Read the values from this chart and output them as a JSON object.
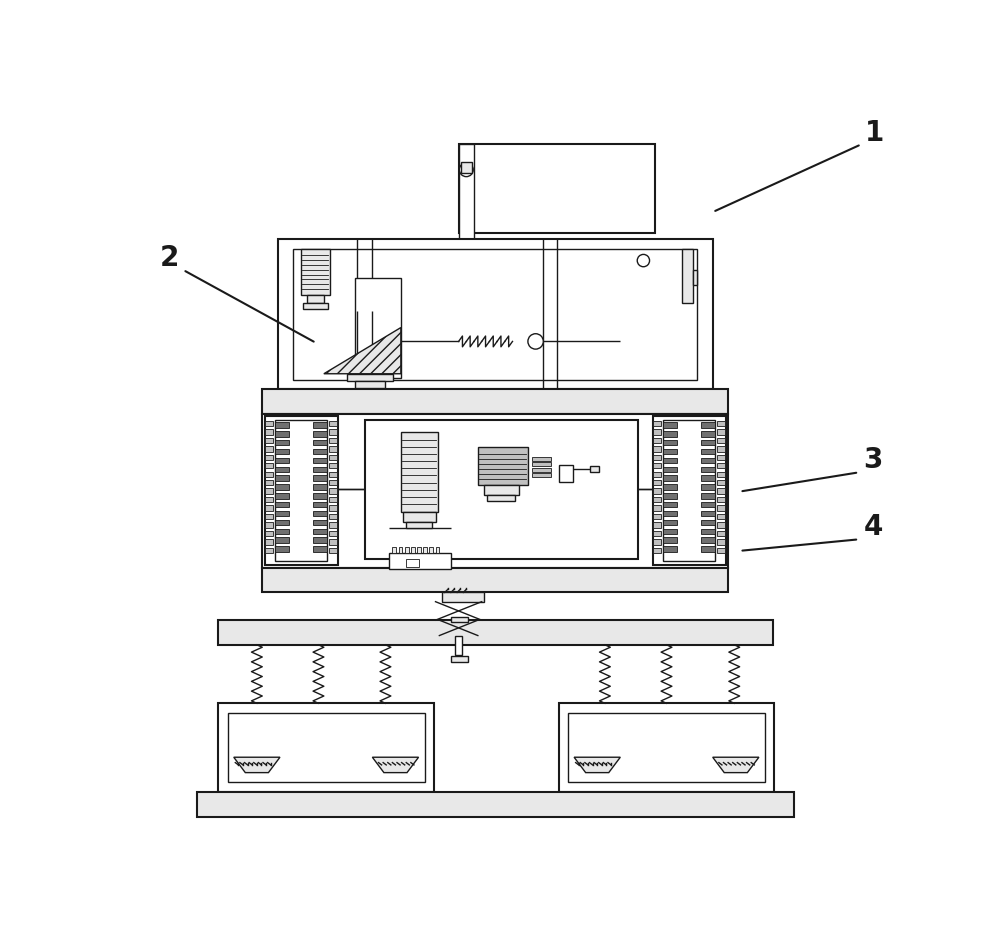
{
  "bg_color": "#ffffff",
  "lc": "#1a1a1a",
  "lw": 1.5,
  "tlw": 1.0,
  "flw": 0.6,
  "fill_light": "#e8e8e8",
  "fill_medium": "#c0c0c0",
  "fill_dark": "#707070",
  "hatch_color": "#555555"
}
